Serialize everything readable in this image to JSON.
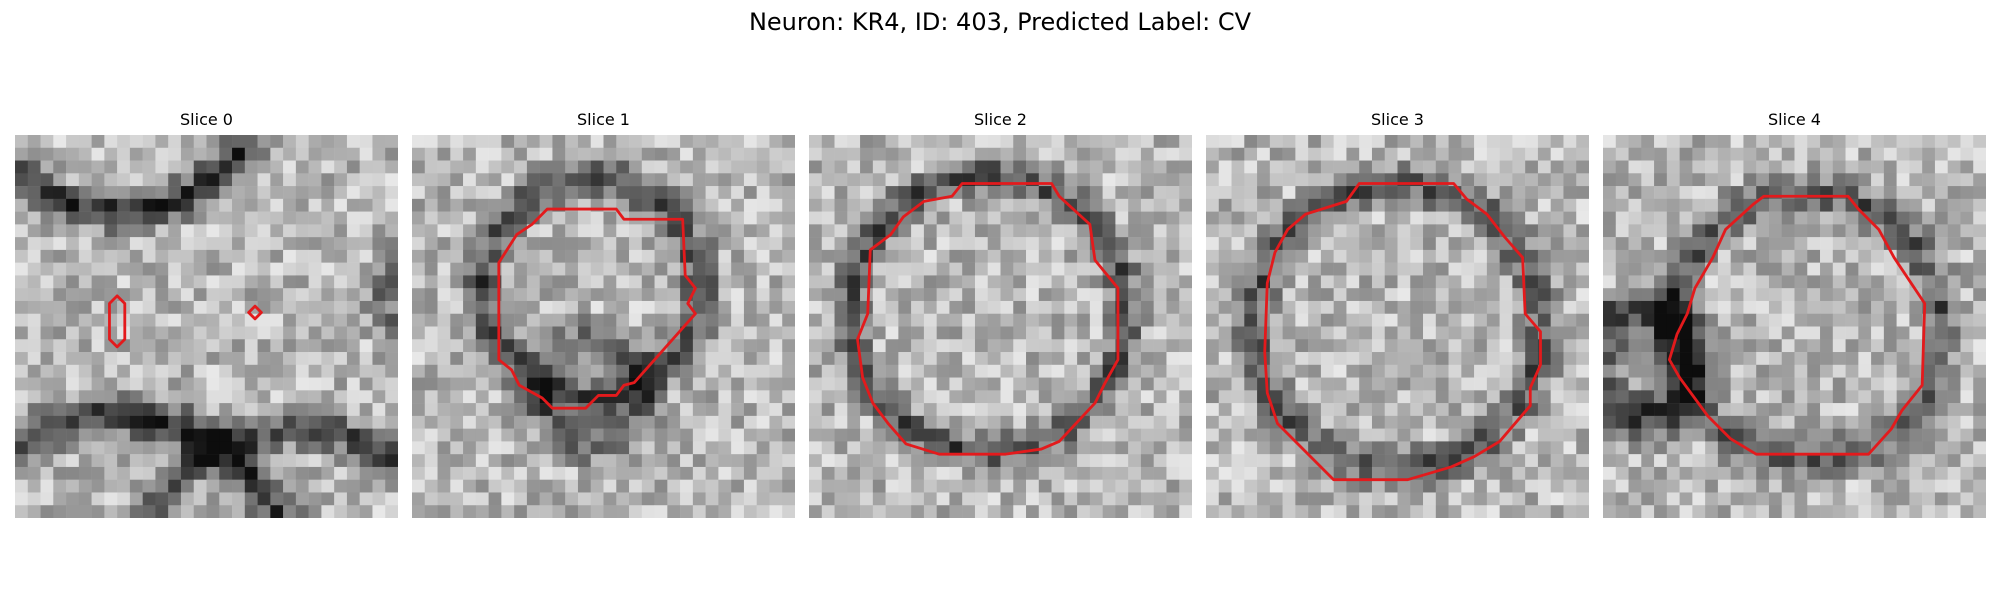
{
  "figure": {
    "title": "Neuron: KR4, ID: 403, Predicted Label: CV"
  },
  "panels": [
    {
      "title": "Slice 0",
      "contour_color": "#e31a1c"
    },
    {
      "title": "Slice 1",
      "contour_color": "#e31a1c"
    },
    {
      "title": "Slice 2",
      "contour_color": "#e31a1c"
    },
    {
      "title": "Slice 3",
      "contour_color": "#e31a1c"
    },
    {
      "title": "Slice 4",
      "contour_color": "#e31a1c"
    }
  ]
}
